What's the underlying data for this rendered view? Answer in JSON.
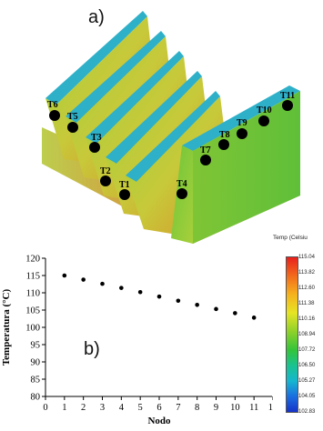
{
  "panel_a_label": "a)",
  "panel_b_label": "b)",
  "sensors": [
    "T1",
    "T2",
    "T3",
    "T4",
    "T5",
    "T6",
    "T7",
    "T8",
    "T9",
    "T10",
    "T11"
  ],
  "colorbar": {
    "title": "Temp (Celsiu",
    "ticks": [
      "115.04",
      "113.82",
      "112.60",
      "111.38",
      "110.16",
      "108.94",
      "107.72",
      "106.50",
      "105.27",
      "104.05",
      "102.83"
    ]
  },
  "chart_data": {
    "type": "scatter",
    "title": "",
    "xlabel": "Nodo",
    "ylabel": "Temperatura (°C)",
    "xlim": [
      0,
      12
    ],
    "ylim": [
      80,
      120
    ],
    "xticks": [
      0,
      1,
      2,
      3,
      4,
      5,
      6,
      7,
      8,
      9,
      10,
      11,
      12
    ],
    "yticks": [
      80,
      85,
      90,
      95,
      100,
      105,
      110,
      115,
      120
    ],
    "points": [
      {
        "x": 1,
        "y": 115.0
      },
      {
        "x": 2,
        "y": 113.8
      },
      {
        "x": 3,
        "y": 112.6
      },
      {
        "x": 4,
        "y": 111.4
      },
      {
        "x": 5,
        "y": 110.2
      },
      {
        "x": 6,
        "y": 108.9
      },
      {
        "x": 7,
        "y": 107.7
      },
      {
        "x": 8,
        "y": 106.5
      },
      {
        "x": 9,
        "y": 105.3
      },
      {
        "x": 10,
        "y": 104.1
      },
      {
        "x": 11,
        "y": 102.8
      }
    ],
    "marker_color": "#000000"
  },
  "colors": {
    "fin_top": "#2fa8c8",
    "fin_body": "#7cc233",
    "hot": "#e07a22"
  }
}
